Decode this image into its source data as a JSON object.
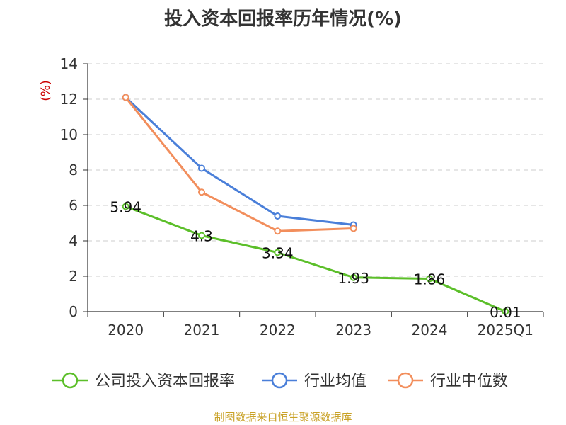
{
  "chart_data": {
    "type": "line",
    "title": "投入资本回报率历年情况(%)",
    "ylabel": "(%)",
    "xlabel": "",
    "categories": [
      "2020",
      "2021",
      "2022",
      "2023",
      "2024",
      "2025Q1"
    ],
    "ylim": [
      0,
      14
    ],
    "yticks": [
      0,
      2,
      4,
      6,
      8,
      10,
      12,
      14
    ],
    "grid": true,
    "legend_position": "bottom",
    "series": [
      {
        "name": "公司投入资本回报率",
        "color": "#5cbf2a",
        "values": [
          5.94,
          4.3,
          3.34,
          1.93,
          1.86,
          0.01
        ],
        "labels": [
          "5.94",
          "4.3",
          "3.34",
          "1.93",
          "1.86",
          "0.01"
        ]
      },
      {
        "name": "行业均值",
        "color": "#4a7fd9",
        "values": [
          12.1,
          8.1,
          5.4,
          4.9,
          null,
          null
        ]
      },
      {
        "name": "行业中位数",
        "color": "#f28e5c",
        "values": [
          12.1,
          6.75,
          4.55,
          4.7,
          null,
          null
        ]
      }
    ],
    "source": "制图数据来自恒生聚源数据库"
  },
  "colors": {
    "axis": "#333333",
    "grid": "#cccccc",
    "ylabel": "#cc0000",
    "source": "#c9a227"
  }
}
